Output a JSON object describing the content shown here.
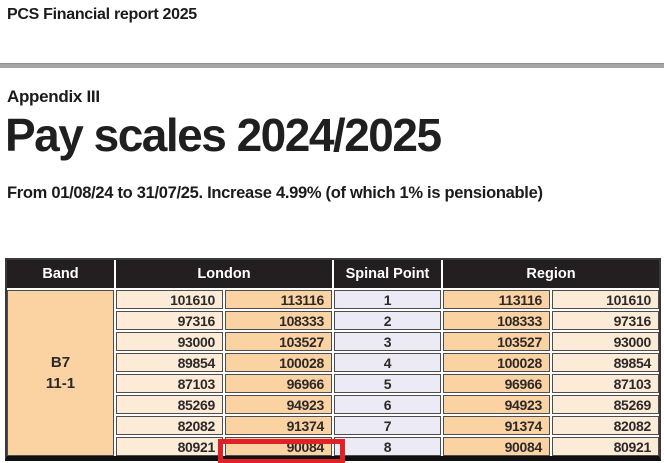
{
  "page": {
    "report_header": "PCS Financial report 2025",
    "appendix": "Appendix III",
    "title": "Pay scales 2024/2025",
    "subtitle": "From 01/08/24 to 31/07/25. Increase 4.99% (of which 1% is pensionable)"
  },
  "table": {
    "headers": {
      "band": "Band",
      "london": "London",
      "spinal_point": "Spinal Point",
      "region": "Region"
    },
    "band": {
      "line1": "B7",
      "line2": "11-1"
    },
    "rows": [
      {
        "london_min": "101610",
        "london_max": "113116",
        "spinal_point": "1",
        "region_max": "113116",
        "region_min": "101610"
      },
      {
        "london_min": "97316",
        "london_max": "108333",
        "spinal_point": "2",
        "region_max": "108333",
        "region_min": "97316"
      },
      {
        "london_min": "93000",
        "london_max": "103527",
        "spinal_point": "3",
        "region_max": "103527",
        "region_min": "93000"
      },
      {
        "london_min": "89854",
        "london_max": "100028",
        "spinal_point": "4",
        "region_max": "100028",
        "region_min": "89854"
      },
      {
        "london_min": "87103",
        "london_max": "96966",
        "spinal_point": "5",
        "region_max": "96966",
        "region_min": "87103"
      },
      {
        "london_min": "85269",
        "london_max": "94923",
        "spinal_point": "6",
        "region_max": "94923",
        "region_min": "85269"
      },
      {
        "london_min": "82082",
        "london_max": "91374",
        "spinal_point": "7",
        "region_max": "91374",
        "region_min": "82082"
      },
      {
        "london_min": "80921",
        "london_max": "90084",
        "spinal_point": "8",
        "region_max": "90084",
        "region_min": "80921"
      }
    ],
    "highlight": {
      "value": "90084",
      "spinal_point": "8",
      "column": "london_max"
    }
  },
  "colors": {
    "header_bg": "#231f20",
    "peach": "#fbd2a2",
    "cream": "#fcebd7",
    "lavender": "#eceaf4",
    "highlight_red": "#e02128",
    "divider_gray": "#a6a6a6"
  }
}
